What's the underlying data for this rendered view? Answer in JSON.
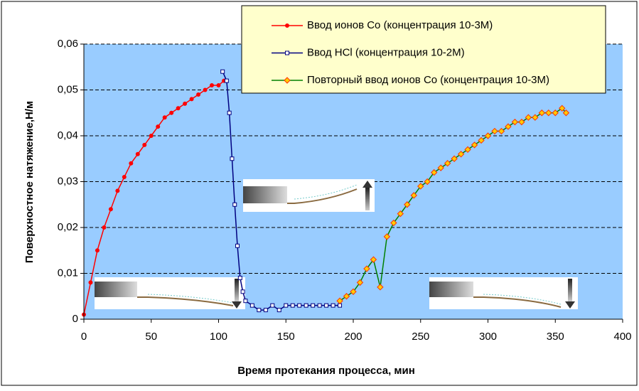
{
  "chart_data": {
    "type": "line",
    "xlabel": "Время протекания процесса, мин",
    "ylabel": "Поверхностное натяжение,Н/м",
    "xlim": [
      0,
      400
    ],
    "xticks": [
      0,
      50,
      100,
      150,
      200,
      250,
      300,
      350,
      400
    ],
    "ylim": [
      0,
      0.06
    ],
    "yticks": [
      0,
      {
        "value": 0.01,
        "label": "0,01"
      },
      {
        "value": 0.02,
        "label": "0,02"
      },
      {
        "value": 0.03,
        "label": "0,03"
      },
      {
        "value": 0.04,
        "label": "0,04"
      },
      {
        "value": 0.05,
        "label": "0,05"
      },
      {
        "value": 0.06,
        "label": "0,06"
      }
    ],
    "grid": true,
    "series": [
      {
        "name": "Ввод ионов Co (концентрация 10-3M)",
        "color": "#ff0000",
        "marker": "circle",
        "marker_color": "#ff0000",
        "x": [
          0,
          5,
          10,
          15,
          20,
          25,
          30,
          35,
          40,
          45,
          50,
          55,
          60,
          65,
          70,
          75,
          80,
          85,
          90,
          95,
          100,
          104
        ],
        "values": [
          0.001,
          0.008,
          0.015,
          0.02,
          0.024,
          0.028,
          0.031,
          0.034,
          0.036,
          0.038,
          0.04,
          0.042,
          0.044,
          0.045,
          0.046,
          0.047,
          0.048,
          0.049,
          0.05,
          0.051,
          0.051,
          0.052
        ]
      },
      {
        "name": "Ввод HCl (концентрация 10-2M)",
        "color": "#000080",
        "marker": "square",
        "marker_color": "#ffffff",
        "x": [
          103,
          106,
          108,
          110,
          112,
          114,
          116,
          118,
          120,
          125,
          130,
          135,
          140,
          145,
          150,
          155,
          160,
          165,
          170,
          175,
          180,
          185,
          190
        ],
        "values": [
          0.054,
          0.052,
          0.045,
          0.035,
          0.025,
          0.016,
          0.009,
          0.006,
          0.004,
          0.003,
          0.002,
          0.002,
          0.003,
          0.002,
          0.003,
          0.003,
          0.003,
          0.003,
          0.003,
          0.003,
          0.003,
          0.003,
          0.003
        ]
      },
      {
        "name": "Повторный ввод ионов Co (концентрация 10-3M)",
        "color": "#008000",
        "marker": "diamond",
        "marker_color": "#ffcc00",
        "x": [
          190,
          195,
          200,
          205,
          210,
          215,
          220,
          225,
          230,
          235,
          240,
          245,
          250,
          255,
          260,
          265,
          270,
          275,
          280,
          285,
          290,
          295,
          300,
          305,
          310,
          315,
          320,
          325,
          330,
          335,
          340,
          345,
          350,
          355,
          358
        ],
        "values": [
          0.004,
          0.005,
          0.006,
          0.008,
          0.011,
          0.013,
          0.007,
          0.018,
          0.021,
          0.023,
          0.025,
          0.027,
          0.029,
          0.03,
          0.032,
          0.033,
          0.034,
          0.035,
          0.036,
          0.037,
          0.038,
          0.039,
          0.04,
          0.041,
          0.041,
          0.042,
          0.043,
          0.043,
          0.044,
          0.044,
          0.045,
          0.045,
          0.045,
          0.046,
          0.045
        ]
      }
    ]
  }
}
